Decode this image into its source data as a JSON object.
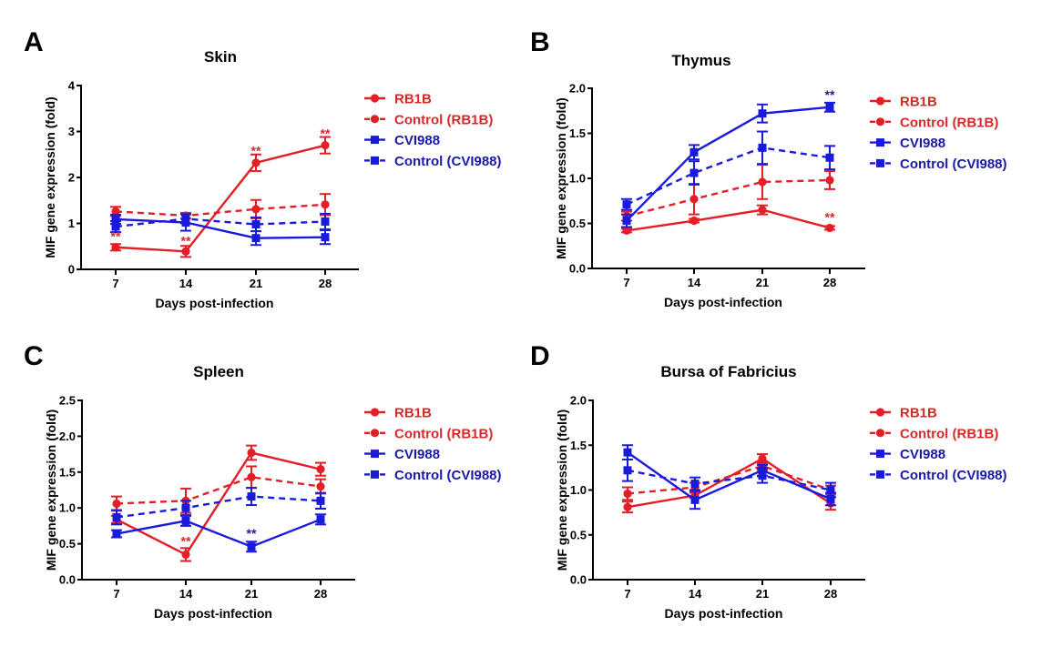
{
  "figure": {
    "colors": {
      "red": "#e41e26",
      "blue": "#1a1adb",
      "red_text": "#d42a2a",
      "blue_text": "#1a1aa8"
    }
  },
  "chart_data": [
    {
      "panel": "A",
      "type": "line",
      "title": "Skin",
      "xlabel": "Days post-infection",
      "ylabel": "MIF gene expression (fold)",
      "x": [
        7,
        14,
        21,
        28
      ],
      "xticks": [
        "7",
        "14",
        "21",
        "28"
      ],
      "yticks": [
        "0",
        "1",
        "2",
        "3",
        "4"
      ],
      "ytick_values": [
        0,
        1,
        2,
        3,
        4
      ],
      "ylim": [
        0,
        4
      ],
      "legend_position": "right",
      "grid": false,
      "series": [
        {
          "name": "RB1B",
          "color": "red",
          "dashed": false,
          "marker": "circle",
          "values": [
            0.48,
            0.39,
            2.32,
            2.7
          ],
          "errors": [
            0.07,
            0.12,
            0.18,
            0.18
          ]
        },
        {
          "name": "Control (RB1B)",
          "color": "red",
          "dashed": true,
          "marker": "circle",
          "values": [
            1.26,
            1.17,
            1.31,
            1.41
          ],
          "errors": [
            0.1,
            0.06,
            0.2,
            0.23
          ]
        },
        {
          "name": "CVI988",
          "color": "blue",
          "dashed": false,
          "marker": "square",
          "values": [
            1.09,
            1.02,
            0.68,
            0.7
          ],
          "errors": [
            0.1,
            0.18,
            0.15,
            0.15
          ]
        },
        {
          "name": "Control (CVI988)",
          "color": "blue",
          "dashed": true,
          "marker": "square",
          "values": [
            0.93,
            1.1,
            0.98,
            1.04
          ],
          "errors": [
            0.12,
            0.1,
            0.15,
            0.17
          ]
        }
      ],
      "annotations": [
        {
          "text": "**",
          "x": 7,
          "y": 0.72,
          "color": "red"
        },
        {
          "text": "**",
          "x": 14,
          "y": 0.62,
          "color": "red"
        },
        {
          "text": "**",
          "x": 21,
          "y": 2.58,
          "color": "red"
        },
        {
          "text": "**",
          "x": 28,
          "y": 2.96,
          "color": "red"
        }
      ]
    },
    {
      "panel": "B",
      "type": "line",
      "title": "Thymus",
      "xlabel": "Days post-infection",
      "ylabel": "MIF gene expression (fold)",
      "x": [
        7,
        14,
        21,
        28
      ],
      "xticks": [
        "7",
        "14",
        "21",
        "28"
      ],
      "yticks": [
        "0.0",
        "0.5",
        "1.0",
        "1.5",
        "2.0"
      ],
      "ytick_values": [
        0,
        0.5,
        1.0,
        1.5,
        2.0
      ],
      "ylim": [
        0,
        2
      ],
      "legend_position": "right",
      "grid": false,
      "series": [
        {
          "name": "RB1B",
          "color": "red",
          "dashed": false,
          "marker": "circle",
          "values": [
            0.42,
            0.53,
            0.65,
            0.45
          ],
          "errors": [
            0.02,
            0.02,
            0.05,
            0.02
          ]
        },
        {
          "name": "Control (RB1B)",
          "color": "red",
          "dashed": true,
          "marker": "circle",
          "values": [
            0.58,
            0.77,
            0.96,
            0.98
          ],
          "errors": [
            0.05,
            0.17,
            0.19,
            0.1
          ]
        },
        {
          "name": "CVI988",
          "color": "blue",
          "dashed": false,
          "marker": "square",
          "values": [
            0.53,
            1.29,
            1.72,
            1.79
          ],
          "errors": [
            0.07,
            0.08,
            0.1,
            0.05
          ]
        },
        {
          "name": "Control (CVI988)",
          "color": "blue",
          "dashed": true,
          "marker": "square",
          "values": [
            0.71,
            1.06,
            1.34,
            1.23
          ],
          "errors": [
            0.06,
            0.13,
            0.18,
            0.13
          ]
        }
      ],
      "annotations": [
        {
          "text": "**",
          "x": 28,
          "y": 1.93,
          "color": "blue"
        },
        {
          "text": "**",
          "x": 28,
          "y": 0.57,
          "color": "red"
        }
      ]
    },
    {
      "panel": "C",
      "type": "line",
      "title": "Spleen",
      "xlabel": "Days post-infection",
      "ylabel": "MIF gene expression (fold)",
      "x": [
        7,
        14,
        21,
        28
      ],
      "xticks": [
        "7",
        "14",
        "21",
        "28"
      ],
      "yticks": [
        "0.0",
        "0.5",
        "1.0",
        "1.5",
        "2.0",
        "2.5"
      ],
      "ytick_values": [
        0,
        0.5,
        1.0,
        1.5,
        2.0,
        2.5
      ],
      "ylim": [
        0,
        2.5
      ],
      "legend_position": "right",
      "grid": false,
      "series": [
        {
          "name": "RB1B",
          "color": "red",
          "dashed": false,
          "marker": "circle",
          "values": [
            0.84,
            0.35,
            1.77,
            1.54
          ],
          "errors": [
            0.05,
            0.09,
            0.1,
            0.09
          ]
        },
        {
          "name": "Control (RB1B)",
          "color": "red",
          "dashed": true,
          "marker": "circle",
          "values": [
            1.06,
            1.1,
            1.43,
            1.3
          ],
          "errors": [
            0.1,
            0.17,
            0.15,
            0.1
          ]
        },
        {
          "name": "CVI988",
          "color": "blue",
          "dashed": false,
          "marker": "square",
          "values": [
            0.64,
            0.82,
            0.46,
            0.84
          ],
          "errors": [
            0.05,
            0.07,
            0.07,
            0.07
          ]
        },
        {
          "name": "Control (CVI988)",
          "color": "blue",
          "dashed": true,
          "marker": "square",
          "values": [
            0.87,
            1.0,
            1.16,
            1.1
          ],
          "errors": [
            0.1,
            0.1,
            0.12,
            0.11
          ]
        }
      ],
      "annotations": [
        {
          "text": "**",
          "x": 14,
          "y": 0.54,
          "color": "red"
        },
        {
          "text": "**",
          "x": 21,
          "y": 0.65,
          "color": "blue"
        }
      ]
    },
    {
      "panel": "D",
      "type": "line",
      "title": "Bursa of Fabricius",
      "xlabel": "Days post-infection",
      "ylabel": "MIF gene expression (fold)",
      "x": [
        7,
        14,
        21,
        28
      ],
      "xticks": [
        "7",
        "14",
        "21",
        "28"
      ],
      "yticks": [
        "0.0",
        "0.5",
        "1.0",
        "1.5",
        "2.0"
      ],
      "ytick_values": [
        0,
        0.5,
        1.0,
        1.5,
        2.0
      ],
      "ylim": [
        0,
        2
      ],
      "legend_position": "right",
      "grid": false,
      "series": [
        {
          "name": "RB1B",
          "color": "red",
          "dashed": false,
          "marker": "circle",
          "values": [
            0.81,
            0.94,
            1.35,
            0.85
          ],
          "errors": [
            0.06,
            0.03,
            0.05,
            0.07
          ]
        },
        {
          "name": "Control (RB1B)",
          "color": "red",
          "dashed": true,
          "marker": "circle",
          "values": [
            0.96,
            1.03,
            1.27,
            1.0
          ],
          "errors": [
            0.07,
            0.05,
            0.05,
            0.05
          ]
        },
        {
          "name": "CVI988",
          "color": "blue",
          "dashed": false,
          "marker": "square",
          "values": [
            1.42,
            0.89,
            1.22,
            0.9
          ],
          "errors": [
            0.08,
            0.1,
            0.06,
            0.07
          ]
        },
        {
          "name": "Control (CVI988)",
          "color": "blue",
          "dashed": true,
          "marker": "square",
          "values": [
            1.22,
            1.07,
            1.16,
            1.0
          ],
          "errors": [
            0.12,
            0.07,
            0.08,
            0.08
          ]
        }
      ],
      "annotations": []
    }
  ]
}
